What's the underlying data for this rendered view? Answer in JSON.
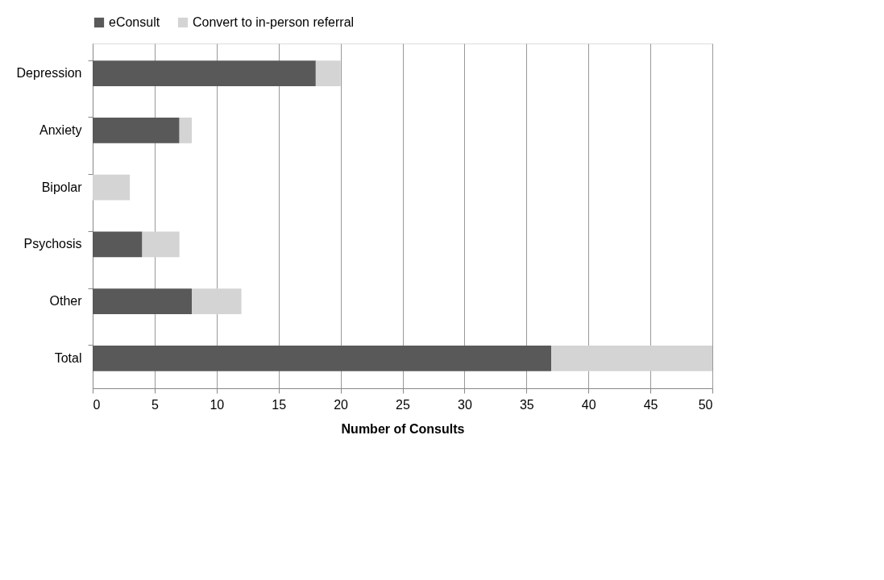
{
  "chart_data": {
    "type": "bar",
    "orientation": "horizontal",
    "stacked": true,
    "xlabel": "Number of Consults",
    "categories": [
      "Depression",
      "Anxiety",
      "Bipolar",
      "Psychosis",
      "Other",
      "Total"
    ],
    "series": [
      {
        "name": "eConsult",
        "color": "#595959",
        "values": [
          18,
          7,
          0,
          4,
          8,
          37
        ]
      },
      {
        "name": "Convert to in-person referral",
        "color": "#d4d4d4",
        "values": [
          2,
          1,
          3,
          3,
          4,
          13
        ]
      }
    ],
    "xlim": [
      0,
      50
    ],
    "xticks": [
      0,
      5,
      10,
      15,
      20,
      25,
      30,
      35,
      40,
      45,
      50
    ],
    "grid": "x",
    "legend": "top"
  }
}
